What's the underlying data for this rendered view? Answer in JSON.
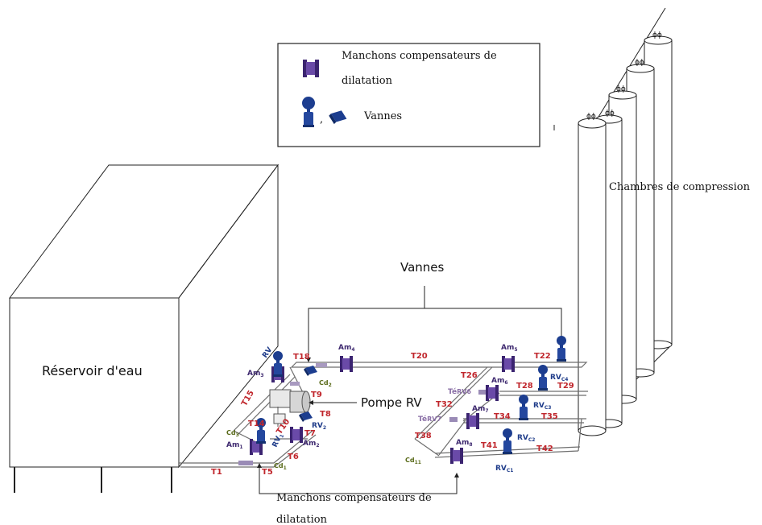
{
  "legend": {
    "compensator_label": "Manchons compensateurs de dilatation",
    "valves_label": "Vannes",
    "separator": ","
  },
  "labels": {
    "reservoir": "Réservoir d'eau",
    "chambers": "Chambres de compression",
    "valves_callout": "Vannes",
    "pump": "Pompe RV",
    "bottom_compensator": "Manchons compensateurs de dilatation"
  },
  "tubes": [
    "T1",
    "T5",
    "T6",
    "T7",
    "T8",
    "T9",
    "T10",
    "T14",
    "T15",
    "T18",
    "T20",
    "T22",
    "T26",
    "T28",
    "T29",
    "T32",
    "T34",
    "T35",
    "T38",
    "T41",
    "T42"
  ],
  "compensators": [
    "Am1",
    "Am2",
    "Am3",
    "Am4",
    "Am5",
    "Am6",
    "Am7",
    "Am8"
  ],
  "valves": [
    "RV",
    "RV1",
    "RV2",
    "RVC1",
    "RVC2",
    "RVC3",
    "RVC4"
  ],
  "tees": [
    "TéRV6",
    "TéRV7"
  ],
  "connectors": [
    "Cd1",
    "Cd2",
    "Cd3",
    "Cd11"
  ],
  "colors": {
    "tube_label": "#c0272d",
    "compensator": "#4a2f86",
    "valve": "#1c3d8f",
    "connector_label": "#5a6b1a",
    "outline": "#222222"
  },
  "icons": [
    "compensator-icon",
    "valve-icon",
    "gate-valve-icon",
    "arrow-icon"
  ]
}
